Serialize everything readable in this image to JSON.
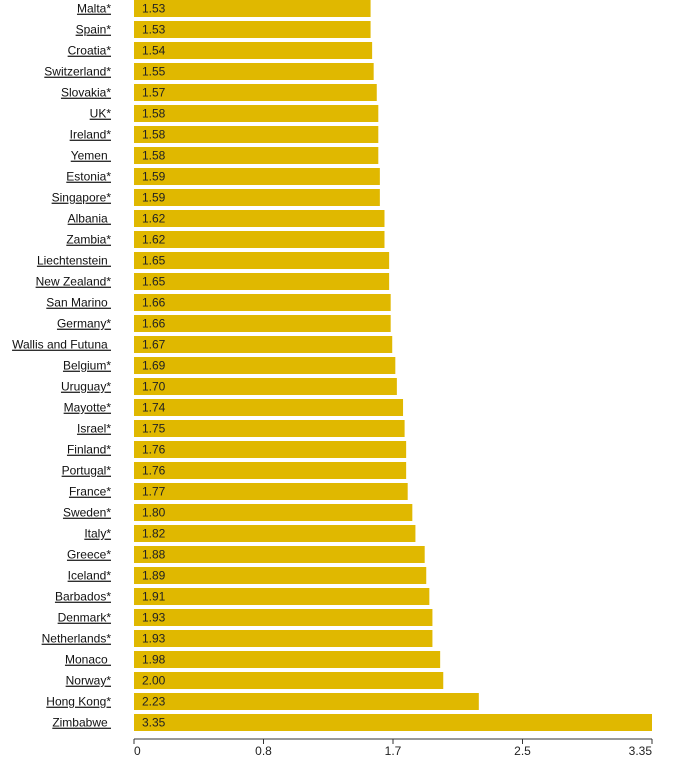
{
  "chart_data": {
    "type": "bar",
    "orientation": "horizontal",
    "color": "#e0b800",
    "categories": [
      "Malta*",
      "Spain*",
      "Croatia*",
      "Switzerland*",
      "Slovakia*",
      "UK*",
      "Ireland*",
      "Yemen ",
      "Estonia*",
      "Singapore*",
      "Albania ",
      "Zambia*",
      "Liechtenstein ",
      "New Zealand*",
      "San Marino ",
      "Germany*",
      "Wallis and Futuna ",
      "Belgium*",
      "Uruguay*",
      "Mayotte*",
      "Israel*",
      "Finland*",
      "Portugal*",
      "France*",
      "Sweden*",
      "Italy*",
      "Greece*",
      "Iceland*",
      "Barbados*",
      "Denmark*",
      "Netherlands*",
      "Monaco ",
      "Norway*",
      "Hong Kong*",
      "Zimbabwe "
    ],
    "values": [
      1.53,
      1.53,
      1.54,
      1.55,
      1.57,
      1.58,
      1.58,
      1.58,
      1.59,
      1.59,
      1.62,
      1.62,
      1.65,
      1.65,
      1.66,
      1.66,
      1.67,
      1.69,
      1.7,
      1.74,
      1.75,
      1.76,
      1.76,
      1.77,
      1.8,
      1.82,
      1.88,
      1.89,
      1.91,
      1.93,
      1.93,
      1.98,
      2,
      2.23,
      3.35
    ],
    "value_labels": [
      "1.53",
      "1.53",
      "1.54",
      "1.55",
      "1.57",
      "1.58",
      "1.58",
      "1.58",
      "1.59",
      "1.59",
      "1.62",
      "1.62",
      "1.65",
      "1.65",
      "1.66",
      "1.66",
      "1.67",
      "1.69",
      "1.70",
      "1.74",
      "1.75",
      "1.76",
      "1.76",
      "1.77",
      "1.80",
      "1.82",
      "1.88",
      "1.89",
      "1.91",
      "1.93",
      "1.93",
      "1.98",
      "2.00",
      "2.23",
      "3.35"
    ],
    "xlim": [
      0,
      3.35
    ],
    "xticks": [
      0,
      {
        "value": 0.8375,
        "label": "0.8"
      },
      {
        "value": 1.675,
        "label": "1.7"
      },
      {
        "value": 2.5125,
        "label": "2.5"
      },
      3.35
    ]
  }
}
